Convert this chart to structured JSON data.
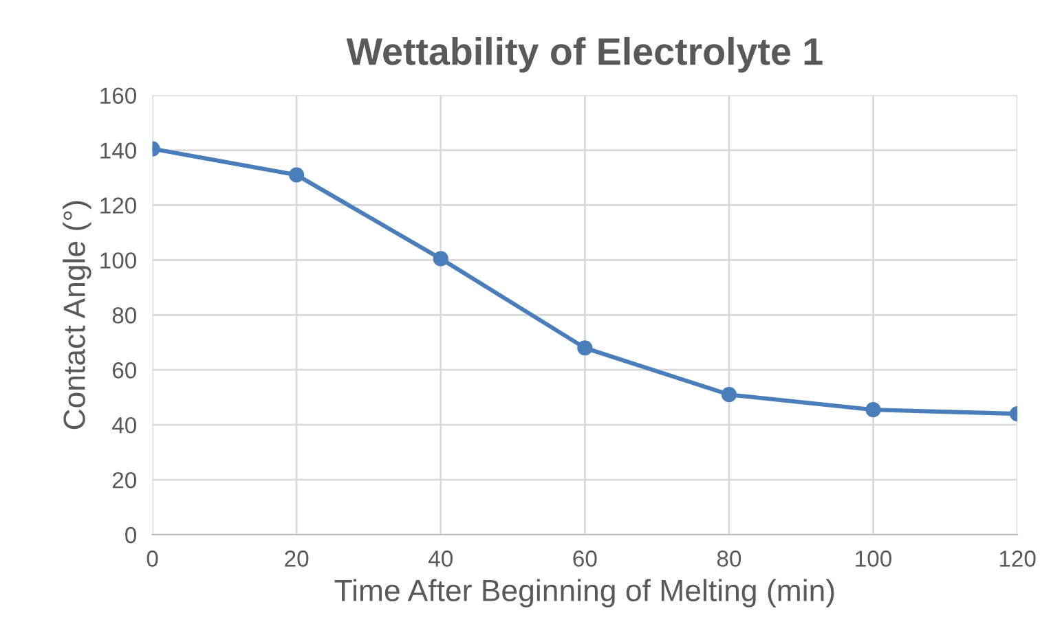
{
  "chart_data": {
    "type": "line",
    "title": "Wettability of Electrolyte 1",
    "xlabel": "Time After Beginning of Melting (min)",
    "ylabel": "Contact Angle (°)",
    "x": [
      0,
      20,
      40,
      60,
      80,
      100,
      120
    ],
    "series": [
      {
        "color": "#4a7ebb",
        "values": [
          140.5,
          131,
          100.5,
          68,
          51,
          45.5,
          44
        ]
      }
    ],
    "xlim": [
      0,
      120
    ],
    "xticks": [
      0,
      20,
      40,
      60,
      80,
      100,
      120
    ],
    "ylim": [
      0,
      160
    ],
    "yticks": [
      0,
      20,
      40,
      60,
      80,
      100,
      120,
      140,
      160
    ],
    "grid": true,
    "marker": "circle",
    "line_style": "solid"
  }
}
